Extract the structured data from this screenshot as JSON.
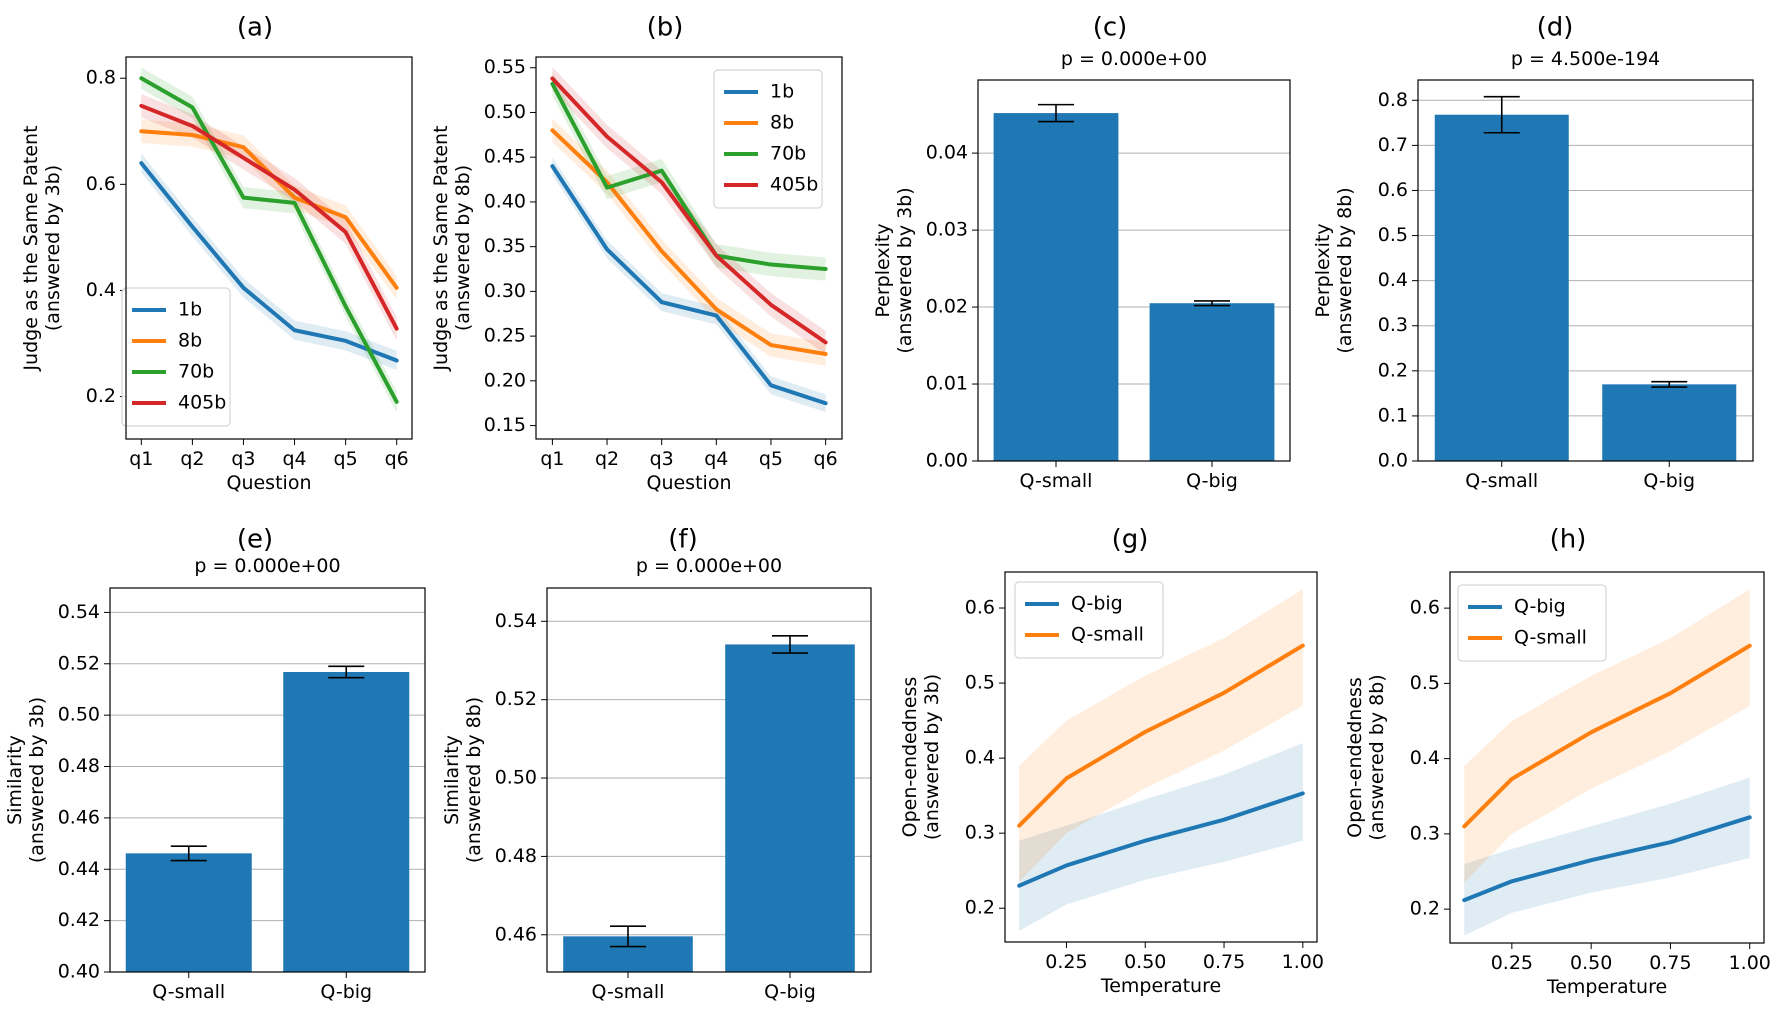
{
  "chart_data": [
    {
      "id": "a",
      "panel_label": "(a)",
      "type": "line",
      "title": "",
      "xlabel": "Question",
      "ylabel": "Judge as the Same Patent\n(answered by 3b)",
      "categories": [
        "q1",
        "q2",
        "q3",
        "q4",
        "q5",
        "q6"
      ],
      "ylim": [
        0.12,
        0.84
      ],
      "yticks": [
        0.2,
        0.4,
        0.6,
        0.8
      ],
      "ytick_labels": [
        "0.2",
        "0.4",
        "0.6",
        "0.8"
      ],
      "grid": false,
      "legend": "lower-left",
      "series": [
        {
          "name": "1b",
          "color": "#1f77b4",
          "values": [
            0.64,
            0.52,
            0.405,
            0.325,
            0.305,
            0.268
          ],
          "band": 0.018
        },
        {
          "name": "8b",
          "color": "#ff7f0e",
          "values": [
            0.7,
            0.693,
            0.67,
            0.575,
            0.538,
            0.405
          ],
          "band": 0.022
        },
        {
          "name": "70b",
          "color": "#2ca02c",
          "values": [
            0.8,
            0.745,
            0.575,
            0.565,
            0.37,
            0.19
          ],
          "band": 0.02
        },
        {
          "name": "405b",
          "color": "#d62728",
          "values": [
            0.748,
            0.71,
            0.65,
            0.59,
            0.51,
            0.328
          ],
          "band": 0.022
        }
      ]
    },
    {
      "id": "b",
      "panel_label": "(b)",
      "type": "line",
      "title": "",
      "xlabel": "Question",
      "ylabel": "Judge as the Same Patent\n(answered by 8b)",
      "categories": [
        "q1",
        "q2",
        "q3",
        "q4",
        "q5",
        "q6"
      ],
      "ylim": [
        0.135,
        0.562
      ],
      "yticks": [
        0.15,
        0.2,
        0.25,
        0.3,
        0.35,
        0.4,
        0.45,
        0.5,
        0.55
      ],
      "ytick_labels": [
        "0.15",
        "0.20",
        "0.25",
        "0.30",
        "0.35",
        "0.40",
        "0.45",
        "0.50",
        "0.55"
      ],
      "grid": false,
      "legend": "top-right",
      "series": [
        {
          "name": "1b",
          "color": "#1f77b4",
          "values": [
            0.44,
            0.347,
            0.288,
            0.273,
            0.195,
            0.175
          ],
          "band": 0.01
        },
        {
          "name": "8b",
          "color": "#ff7f0e",
          "values": [
            0.48,
            0.422,
            0.345,
            0.28,
            0.24,
            0.23
          ],
          "band": 0.013
        },
        {
          "name": "70b",
          "color": "#2ca02c",
          "values": [
            0.532,
            0.416,
            0.435,
            0.34,
            0.33,
            0.325
          ],
          "band": 0.013
        },
        {
          "name": "405b",
          "color": "#d62728",
          "values": [
            0.538,
            0.473,
            0.422,
            0.34,
            0.285,
            0.243
          ],
          "band": 0.013
        }
      ]
    },
    {
      "id": "c",
      "panel_label": "(c)",
      "type": "bar",
      "title": "p = 0.000e+00",
      "xlabel": "",
      "ylabel": "Perplexity\n(answered by 3b)",
      "categories": [
        "Q-small",
        "Q-big"
      ],
      "values": [
        0.0452,
        0.0205
      ],
      "errors": [
        0.0011,
        0.0003
      ],
      "color": "#1f77b4",
      "ylim": [
        0,
        0.0495
      ],
      "yticks": [
        0,
        0.01,
        0.02,
        0.03,
        0.04
      ],
      "ytick_labels": [
        "0.00",
        "0.01",
        "0.02",
        "0.03",
        "0.04"
      ],
      "grid": true
    },
    {
      "id": "d",
      "panel_label": "(d)",
      "type": "bar",
      "title": "p = 4.500e-194",
      "xlabel": "",
      "ylabel": "Perplexity\n(answered by 8b)",
      "categories": [
        "Q-small",
        "Q-big"
      ],
      "values": [
        0.768,
        0.17
      ],
      "errors": [
        0.04,
        0.006
      ],
      "color": "#1f77b4",
      "ylim": [
        0,
        0.845
      ],
      "yticks": [
        0,
        0.1,
        0.2,
        0.3,
        0.4,
        0.5,
        0.6,
        0.7,
        0.8
      ],
      "ytick_labels": [
        "0.0",
        "0.1",
        "0.2",
        "0.3",
        "0.4",
        "0.5",
        "0.6",
        "0.7",
        "0.8"
      ],
      "grid": true
    },
    {
      "id": "e",
      "panel_label": "(e)",
      "type": "bar",
      "title": "p = 0.000e+00",
      "xlabel": "",
      "ylabel": "Similarity\n(answered by 3b)",
      "categories": [
        "Q-small",
        "Q-big"
      ],
      "values": [
        0.4462,
        0.5168
      ],
      "errors": [
        0.0028,
        0.0022
      ],
      "color": "#1f77b4",
      "ylim": [
        0.4,
        0.5495
      ],
      "yticks": [
        0.4,
        0.42,
        0.44,
        0.46,
        0.48,
        0.5,
        0.52,
        0.54
      ],
      "ytick_labels": [
        "0.40",
        "0.42",
        "0.44",
        "0.46",
        "0.48",
        "0.50",
        "0.52",
        "0.54"
      ],
      "grid": true
    },
    {
      "id": "f",
      "panel_label": "(f)",
      "type": "bar",
      "title": "p = 0.000e+00",
      "xlabel": "",
      "ylabel": "Similarity\n(answered by 8b)",
      "categories": [
        "Q-small",
        "Q-big"
      ],
      "values": [
        0.4596,
        0.5341
      ],
      "errors": [
        0.0026,
        0.0022
      ],
      "color": "#1f77b4",
      "ylim": [
        0.4505,
        0.5485
      ],
      "yticks": [
        0.46,
        0.48,
        0.5,
        0.52,
        0.54
      ],
      "ytick_labels": [
        "0.46",
        "0.48",
        "0.50",
        "0.52",
        "0.54"
      ],
      "grid": true
    },
    {
      "id": "g",
      "panel_label": "(g)",
      "type": "line",
      "title": "",
      "xlabel": "Temperature",
      "ylabel": "Open-endedness\n(answered by 3b)",
      "x": [
        0.1,
        0.25,
        0.5,
        0.75,
        1.0
      ],
      "xlim": [
        0.055,
        1.045
      ],
      "xticks": [
        0.25,
        0.5,
        0.75,
        1.0
      ],
      "xtick_labels": [
        "0.25",
        "0.50",
        "0.75",
        "1.00"
      ],
      "ylim": [
        0.155,
        0.648
      ],
      "yticks": [
        0.2,
        0.3,
        0.4,
        0.5,
        0.6
      ],
      "ytick_labels": [
        "0.2",
        "0.3",
        "0.4",
        "0.5",
        "0.6"
      ],
      "grid": false,
      "legend": "top-left",
      "series": [
        {
          "name": "Q-big",
          "color": "#1f77b4",
          "values": [
            0.23,
            0.257,
            0.29,
            0.318,
            0.353
          ],
          "lower": [
            0.17,
            0.205,
            0.238,
            0.262,
            0.29
          ],
          "upper": [
            0.29,
            0.31,
            0.345,
            0.378,
            0.42
          ]
        },
        {
          "name": "Q-small",
          "color": "#ff7f0e",
          "values": [
            0.31,
            0.373,
            0.435,
            0.487,
            0.55
          ],
          "lower": [
            0.235,
            0.3,
            0.36,
            0.41,
            0.47
          ],
          "upper": [
            0.39,
            0.45,
            0.51,
            0.56,
            0.625
          ]
        }
      ]
    },
    {
      "id": "h",
      "panel_label": "(h)",
      "type": "line",
      "title": "",
      "xlabel": "Temperature",
      "ylabel": "Open-endedness\n(answered by 8b)",
      "x": [
        0.1,
        0.25,
        0.5,
        0.75,
        1.0
      ],
      "xlim": [
        0.055,
        1.045
      ],
      "xticks": [
        0.25,
        0.5,
        0.75,
        1.0
      ],
      "xtick_labels": [
        "0.25",
        "0.50",
        "0.75",
        "1.00"
      ],
      "ylim": [
        0.155,
        0.648
      ],
      "yticks": [
        0.2,
        0.3,
        0.4,
        0.5,
        0.6
      ],
      "ytick_labels": [
        "0.2",
        "0.3",
        "0.4",
        "0.5",
        "0.6"
      ],
      "grid": false,
      "legend": "top-left",
      "series": [
        {
          "name": "Q-big",
          "color": "#1f77b4",
          "values": [
            0.212,
            0.237,
            0.265,
            0.289,
            0.322
          ],
          "lower": [
            0.165,
            0.195,
            0.222,
            0.242,
            0.268
          ],
          "upper": [
            0.26,
            0.28,
            0.31,
            0.34,
            0.375
          ]
        },
        {
          "name": "Q-small",
          "color": "#ff7f0e",
          "values": [
            0.31,
            0.373,
            0.435,
            0.487,
            0.55
          ],
          "lower": [
            0.235,
            0.3,
            0.36,
            0.41,
            0.47
          ],
          "upper": [
            0.39,
            0.45,
            0.51,
            0.56,
            0.625
          ]
        }
      ]
    }
  ]
}
